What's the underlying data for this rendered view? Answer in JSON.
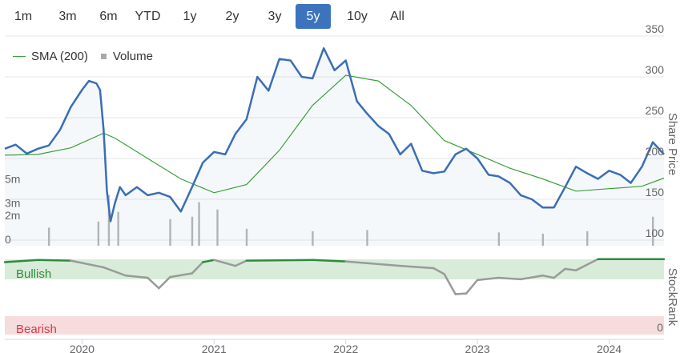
{
  "range_buttons": [
    "1m",
    "3m",
    "6m",
    "YTD",
    "1y",
    "2y",
    "3y",
    "5y",
    "10y",
    "All"
  ],
  "active_range": "5y",
  "legend": {
    "sma_label": "SMA (200)",
    "volume_label": "Volume"
  },
  "colors": {
    "price": "#3a6eb5",
    "sma": "#3aa03a",
    "volume": "#b8b8b8",
    "bullish_band": "#d8ecd9",
    "bearish_band": "#f6dcdd",
    "bullish_text": "#2e8b3e",
    "bearish_text": "#d63a45",
    "rank_line": "#2e8b3e",
    "rank_line_low": "#9a9a9a",
    "active_button": "#3b73bd"
  },
  "chart_data": {
    "type": "line",
    "x_axis": {
      "ticks": [
        "2020",
        "2021",
        "2022",
        "2023",
        "2024"
      ],
      "min": "2019-06-01",
      "max": "2024-06-01"
    },
    "price_axis": {
      "label": "Share Price",
      "ticks": [
        100,
        150,
        200,
        250,
        300,
        350
      ],
      "min": 100,
      "max": 350
    },
    "volume_axis": {
      "ticks": [
        "0",
        "2m",
        "3m",
        "5m"
      ],
      "min": 0,
      "max": 9
    },
    "stockrank_axis": {
      "label": "StockRank",
      "ticks": [
        "0"
      ],
      "band_labels": {
        "high": "Bullish",
        "low": "Bearish"
      },
      "min": 0,
      "max": 100
    },
    "series": [
      {
        "name": "Price",
        "values": [
          [
            "2019-06-01",
            212
          ],
          [
            "2019-07-01",
            217
          ],
          [
            "2019-08-01",
            206
          ],
          [
            "2019-09-01",
            212
          ],
          [
            "2019-10-01",
            216
          ],
          [
            "2019-11-01",
            235
          ],
          [
            "2019-12-01",
            263
          ],
          [
            "2020-01-01",
            284
          ],
          [
            "2020-01-20",
            295
          ],
          [
            "2020-02-10",
            292
          ],
          [
            "2020-02-20",
            284
          ],
          [
            "2020-03-01",
            235
          ],
          [
            "2020-03-10",
            160
          ],
          [
            "2020-03-20",
            123
          ],
          [
            "2020-04-01",
            145
          ],
          [
            "2020-04-15",
            165
          ],
          [
            "2020-05-01",
            155
          ],
          [
            "2020-06-01",
            165
          ],
          [
            "2020-07-01",
            155
          ],
          [
            "2020-08-01",
            158
          ],
          [
            "2020-09-01",
            153
          ],
          [
            "2020-10-01",
            135
          ],
          [
            "2020-11-01",
            165
          ],
          [
            "2020-12-01",
            195
          ],
          [
            "2021-01-01",
            208
          ],
          [
            "2021-02-01",
            205
          ],
          [
            "2021-03-01",
            230
          ],
          [
            "2021-04-01",
            248
          ],
          [
            "2021-05-01",
            300
          ],
          [
            "2021-06-01",
            283
          ],
          [
            "2021-07-01",
            322
          ],
          [
            "2021-08-01",
            320
          ],
          [
            "2021-09-01",
            300
          ],
          [
            "2021-10-01",
            298
          ],
          [
            "2021-11-01",
            335
          ],
          [
            "2021-12-01",
            308
          ],
          [
            "2022-01-01",
            320
          ],
          [
            "2022-02-01",
            270
          ],
          [
            "2022-03-01",
            255
          ],
          [
            "2022-04-01",
            240
          ],
          [
            "2022-05-01",
            230
          ],
          [
            "2022-06-01",
            205
          ],
          [
            "2022-07-01",
            218
          ],
          [
            "2022-08-01",
            185
          ],
          [
            "2022-09-01",
            182
          ],
          [
            "2022-10-01",
            184
          ],
          [
            "2022-11-01",
            205
          ],
          [
            "2022-12-01",
            212
          ],
          [
            "2023-01-01",
            200
          ],
          [
            "2023-02-01",
            180
          ],
          [
            "2023-03-01",
            178
          ],
          [
            "2023-04-01",
            170
          ],
          [
            "2023-05-01",
            155
          ],
          [
            "2023-06-01",
            150
          ],
          [
            "2023-07-01",
            140
          ],
          [
            "2023-08-01",
            140
          ],
          [
            "2023-09-01",
            165
          ],
          [
            "2023-10-01",
            190
          ],
          [
            "2023-11-01",
            182
          ],
          [
            "2023-12-01",
            175
          ],
          [
            "2024-01-01",
            185
          ],
          [
            "2024-02-01",
            180
          ],
          [
            "2024-03-01",
            170
          ],
          [
            "2024-04-01",
            190
          ],
          [
            "2024-05-01",
            220
          ],
          [
            "2024-06-01",
            205
          ]
        ]
      },
      {
        "name": "SMA (200)",
        "values": [
          [
            "2019-06-01",
            204
          ],
          [
            "2019-09-01",
            205
          ],
          [
            "2019-12-01",
            213
          ],
          [
            "2020-03-01",
            231
          ],
          [
            "2020-04-01",
            225
          ],
          [
            "2020-07-01",
            200
          ],
          [
            "2020-10-01",
            175
          ],
          [
            "2021-01-01",
            158
          ],
          [
            "2021-04-01",
            168
          ],
          [
            "2021-07-01",
            210
          ],
          [
            "2021-10-01",
            265
          ],
          [
            "2022-01-01",
            302
          ],
          [
            "2022-04-01",
            295
          ],
          [
            "2022-07-01",
            265
          ],
          [
            "2022-10-01",
            222
          ],
          [
            "2023-01-01",
            205
          ],
          [
            "2023-04-01",
            188
          ],
          [
            "2023-07-01",
            175
          ],
          [
            "2023-10-01",
            160
          ],
          [
            "2024-01-01",
            163
          ],
          [
            "2024-04-01",
            166
          ],
          [
            "2024-06-01",
            176
          ]
        ]
      },
      {
        "name": "Volume",
        "values": [
          [
            "2019-10-01",
            1.5
          ],
          [
            "2020-02-15",
            2.0
          ],
          [
            "2020-03-15",
            4.2
          ],
          [
            "2020-04-10",
            2.8
          ],
          [
            "2020-09-01",
            2.2
          ],
          [
            "2020-11-01",
            2.4
          ],
          [
            "2020-11-20",
            3.6
          ],
          [
            "2021-01-10",
            3.0
          ],
          [
            "2021-04-01",
            1.4
          ],
          [
            "2021-10-01",
            1.2
          ],
          [
            "2022-03-01",
            1.3
          ],
          [
            "2023-03-01",
            1.1
          ],
          [
            "2023-07-01",
            1.0
          ],
          [
            "2023-11-01",
            1.2
          ],
          [
            "2024-05-01",
            2.4
          ]
        ]
      },
      {
        "name": "StockRank",
        "values": [
          [
            "2019-06-01",
            93
          ],
          [
            "2019-09-01",
            96
          ],
          [
            "2019-12-01",
            95
          ],
          [
            "2020-03-01",
            86
          ],
          [
            "2020-05-01",
            75
          ],
          [
            "2020-07-01",
            72
          ],
          [
            "2020-08-01",
            58
          ],
          [
            "2020-09-01",
            73
          ],
          [
            "2020-11-01",
            78
          ],
          [
            "2020-12-01",
            93
          ],
          [
            "2021-01-01",
            96
          ],
          [
            "2021-03-01",
            88
          ],
          [
            "2021-04-01",
            95
          ],
          [
            "2021-10-01",
            96
          ],
          [
            "2022-01-01",
            94
          ],
          [
            "2022-06-01",
            88
          ],
          [
            "2022-09-01",
            85
          ],
          [
            "2022-10-01",
            77
          ],
          [
            "2022-11-01",
            50
          ],
          [
            "2022-12-01",
            51
          ],
          [
            "2023-01-01",
            69
          ],
          [
            "2023-03-01",
            72
          ],
          [
            "2023-05-01",
            70
          ],
          [
            "2023-07-01",
            75
          ],
          [
            "2023-08-01",
            72
          ],
          [
            "2023-09-01",
            84
          ],
          [
            "2023-10-01",
            82
          ],
          [
            "2023-12-01",
            97
          ],
          [
            "2024-03-01",
            97
          ],
          [
            "2024-06-01",
            97
          ]
        ]
      }
    ]
  }
}
